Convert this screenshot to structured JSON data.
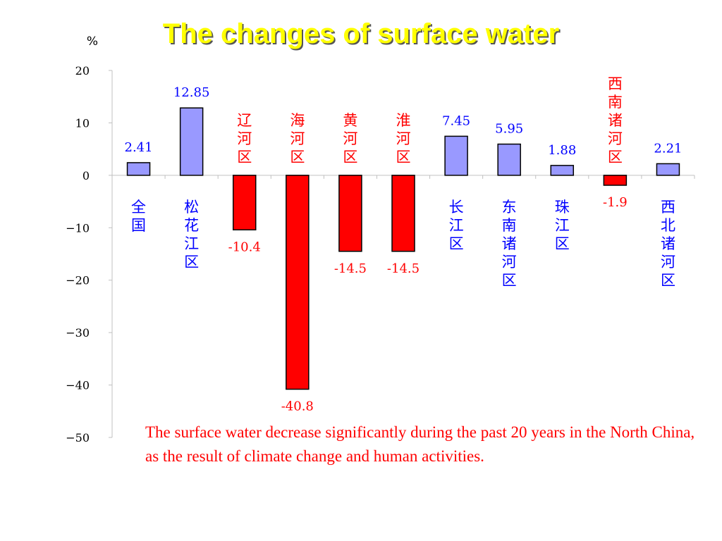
{
  "chart_data": {
    "type": "bar",
    "title": "The changes of surface water",
    "ylabel": "%",
    "ylim": [
      -50,
      20
    ],
    "yticks": [
      20,
      10,
      0,
      -10,
      -20,
      -30,
      -40,
      -50
    ],
    "grid": false,
    "categories": [
      "全国",
      "松花江区",
      "辽河区",
      "海河区",
      "黄河区",
      "淮河区",
      "长江区",
      "东南诸河区",
      "珠江区",
      "西南诸河区",
      "西北诸河区"
    ],
    "values": [
      2.41,
      12.85,
      -10.4,
      -40.8,
      -14.5,
      -14.5,
      7.45,
      5.95,
      1.88,
      -1.9,
      2.21
    ],
    "value_labels": [
      "2.41",
      "12.85",
      "-10.4",
      "-40.8",
      "-14.5",
      "-14.5",
      "7.45",
      "5.95",
      "1.88",
      "-1.9",
      "2.21"
    ],
    "colors": {
      "positive_bar": "#9999ff",
      "negative_bar": "#ff0000",
      "positive_text": "#0000ff",
      "negative_text": "#ff0000",
      "bar_border": "#000000"
    }
  },
  "note": "The surface water decrease significantly during the past 20 years in the North China, as the result of climate change and human activities."
}
